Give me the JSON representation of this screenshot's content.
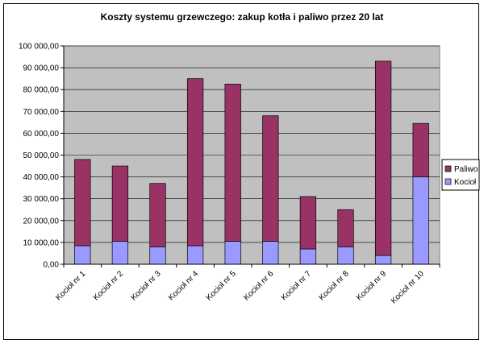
{
  "chart_data": {
    "type": "bar",
    "stacked": true,
    "title": "Koszty systemu grzewczego: zakup kotła i paliwo przez 20 lat",
    "xlabel": "",
    "ylabel": "",
    "ylim": [
      0,
      100000
    ],
    "y_ticks": [
      "0,00",
      "10 000,00",
      "20 000,00",
      "30 000,00",
      "40 000,00",
      "50 000,00",
      "60 000,00",
      "70 000,00",
      "80 000,00",
      "90 000,00",
      "100 000,00"
    ],
    "categories": [
      "Kocioł nr 1",
      "Kocioł nr 2",
      "Kocioł nr 3",
      "Kocioł nr 4",
      "Kocioł nr 5",
      "Kocioł nr 6",
      "Kocioł nr 7",
      "Kocioł nr 8",
      "Kocioł nr 9",
      "Kocioł nr 10"
    ],
    "series": [
      {
        "name": "Kocioł",
        "color": "#9999ff",
        "values": [
          8500,
          10500,
          8000,
          8500,
          10500,
          10500,
          7000,
          8000,
          4000,
          40000
        ]
      },
      {
        "name": "Paliwo",
        "color": "#993366",
        "values": [
          39500,
          34500,
          29000,
          76500,
          72000,
          57500,
          24000,
          17000,
          89000,
          24500
        ]
      }
    ],
    "legend": {
      "position": "right",
      "order": [
        "Paliwo",
        "Kocioł"
      ]
    },
    "grid": true,
    "plot_background": "#c0c0c0"
  }
}
